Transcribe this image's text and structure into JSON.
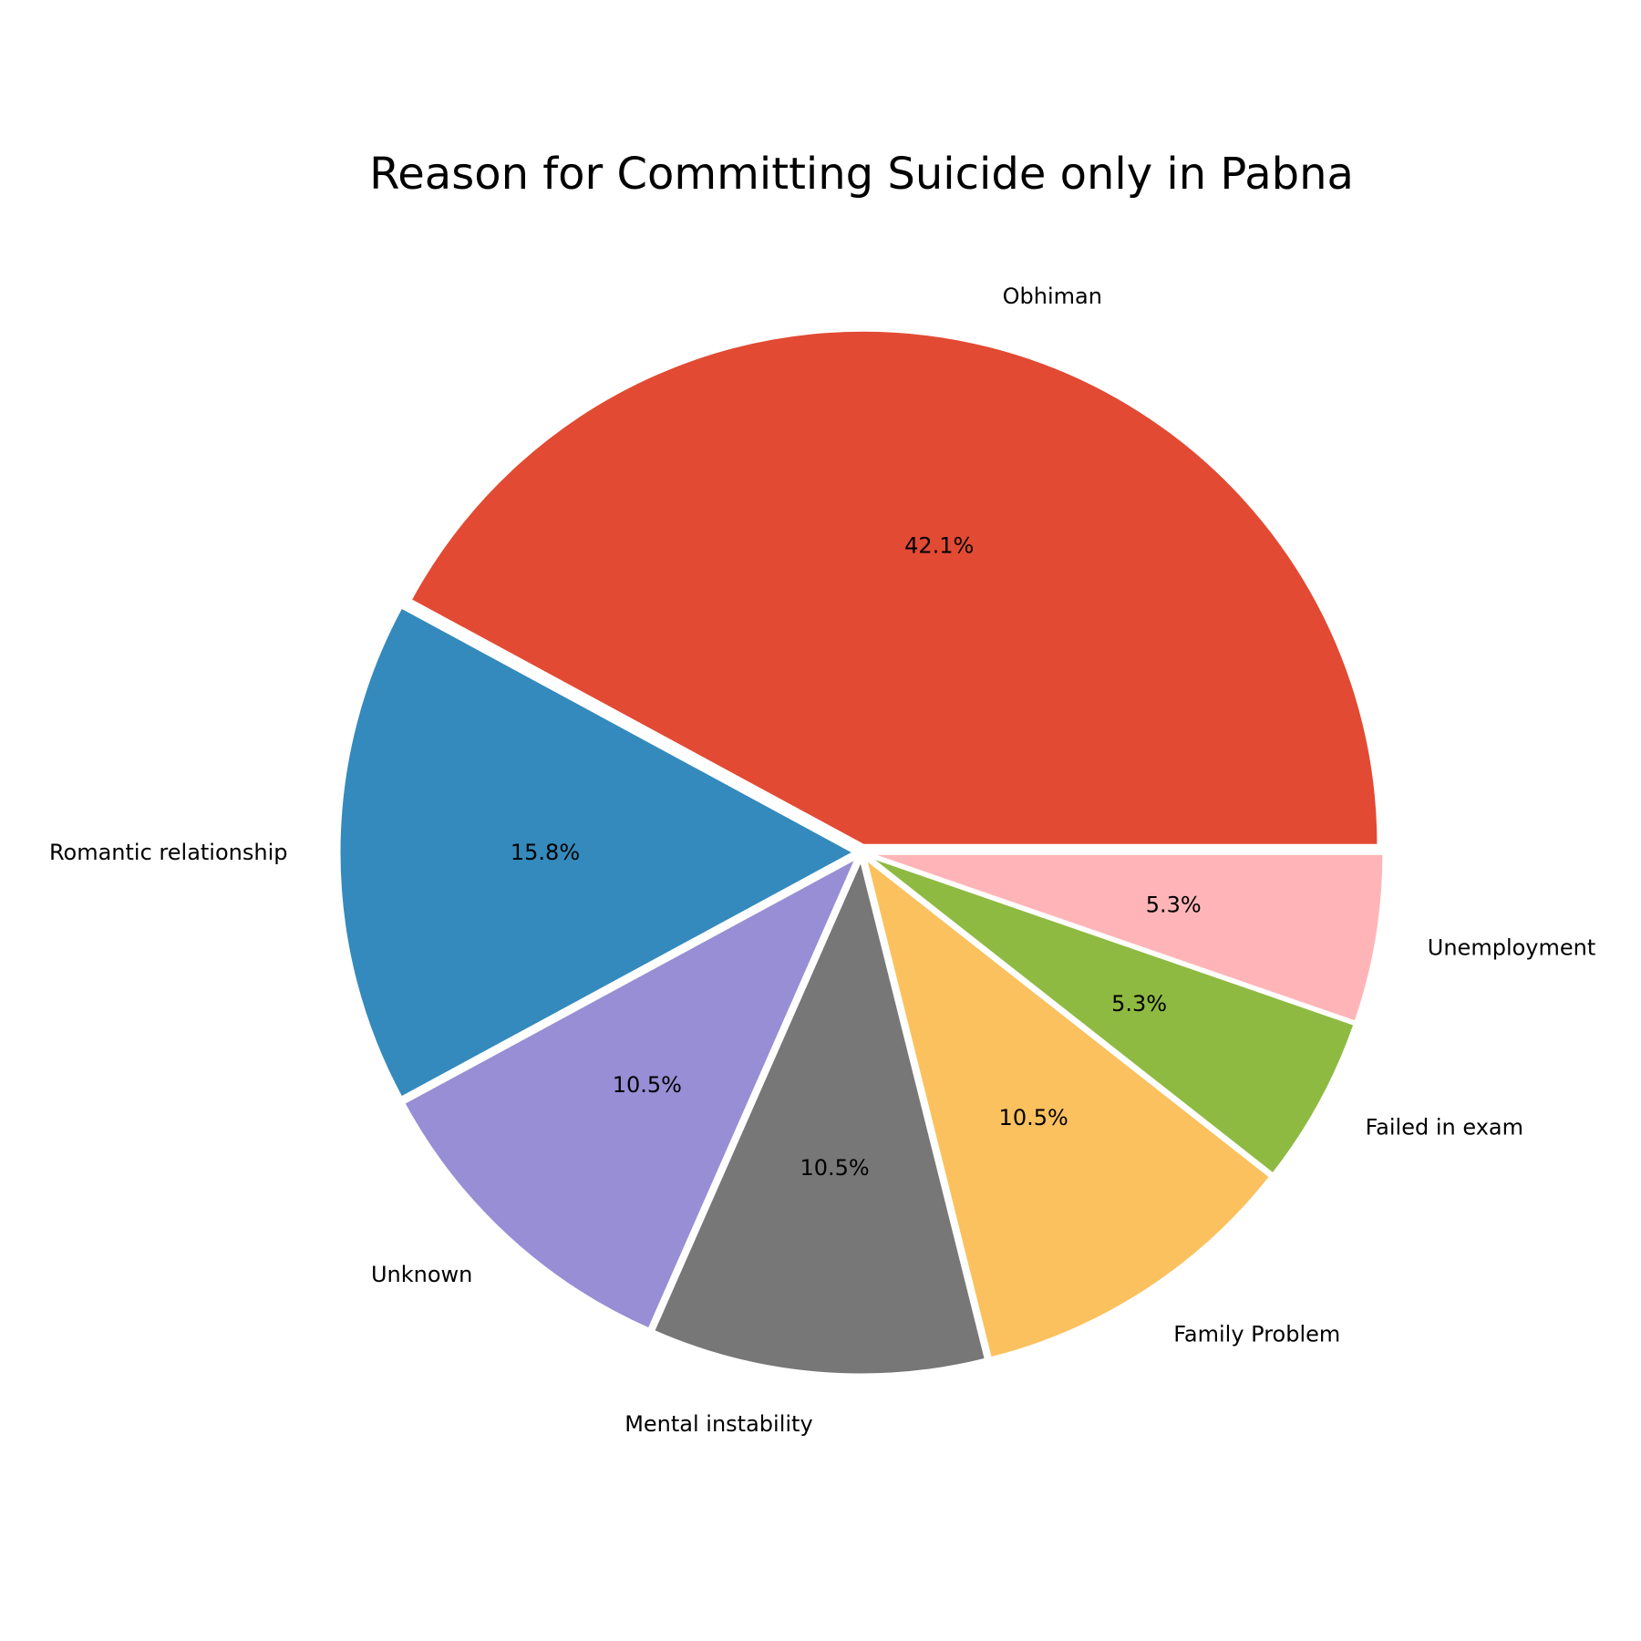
{
  "chart_data": {
    "type": "pie",
    "title": "Reason for Committing Suicide only in Pabna",
    "slices": [
      {
        "label": "Obhiman",
        "value": 42.1,
        "pct_label": "42.1%",
        "color": "#E24A33"
      },
      {
        "label": "Romantic relationship",
        "value": 15.8,
        "pct_label": "15.8%",
        "color": "#348ABD"
      },
      {
        "label": "Unknown",
        "value": 10.5,
        "pct_label": "10.5%",
        "color": "#988ED5"
      },
      {
        "label": "Mental instability",
        "value": 10.5,
        "pct_label": "10.5%",
        "color": "#777777"
      },
      {
        "label": "Family Problem",
        "value": 10.5,
        "pct_label": "10.5%",
        "color": "#FBC15E"
      },
      {
        "label": "Failed in exam",
        "value": 5.3,
        "pct_label": "5.3%",
        "color": "#8EBA42"
      },
      {
        "label": "Unemployment",
        "value": 5.3,
        "pct_label": "5.3%",
        "color": "#FFB5B8"
      }
    ],
    "start_angle": 0,
    "direction": "counterclockwise",
    "legend": "none"
  }
}
